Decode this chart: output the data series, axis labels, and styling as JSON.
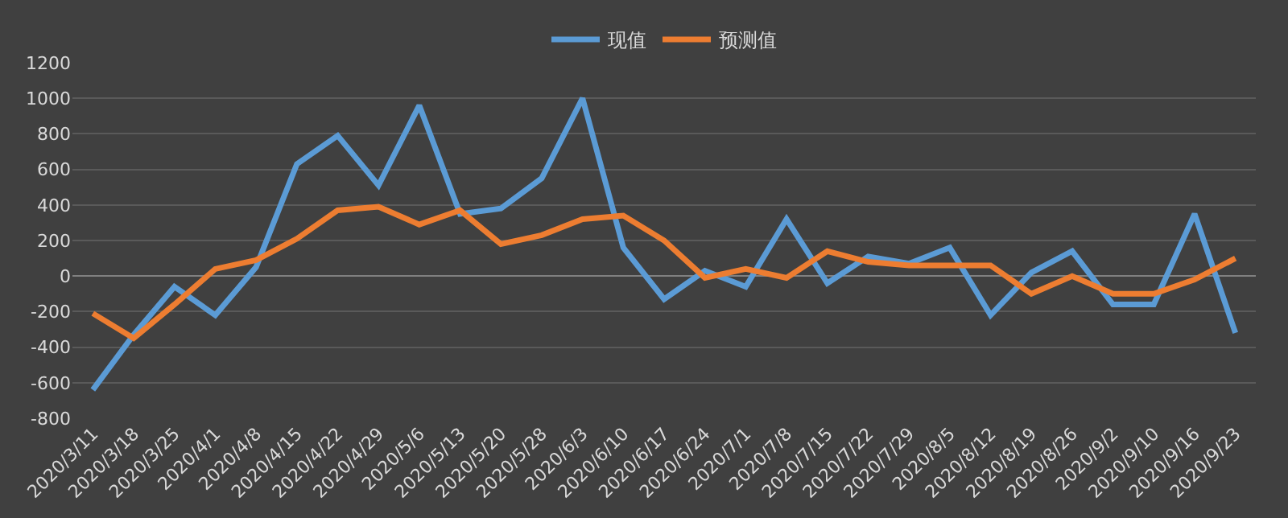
{
  "chart_data": {
    "type": "line",
    "categories": [
      "2020/3/11",
      "2020/3/18",
      "2020/3/25",
      "2020/4/1",
      "2020/4/8",
      "2020/4/15",
      "2020/4/22",
      "2020/4/29",
      "2020/5/6",
      "2020/5/13",
      "2020/5/20",
      "2020/5/28",
      "2020/6/3",
      "2020/6/10",
      "2020/6/17",
      "2020/6/24",
      "2020/7/1",
      "2020/7/8",
      "2020/7/15",
      "2020/7/22",
      "2020/7/29",
      "2020/8/5",
      "2020/8/12",
      "2020/8/19",
      "2020/8/26",
      "2020/9/2",
      "2020/9/10",
      "2020/9/16",
      "2020/9/23"
    ],
    "series": [
      {
        "name": "现值",
        "color": "#5b9bd5",
        "values": [
          -640,
          -330,
          -60,
          -220,
          50,
          630,
          790,
          510,
          960,
          350,
          380,
          550,
          1000,
          160,
          -130,
          30,
          -60,
          320,
          -40,
          110,
          70,
          160,
          -220,
          20,
          140,
          -160,
          -160,
          350,
          -320
        ]
      },
      {
        "name": "预测值",
        "color": "#ed7d31",
        "values": [
          -210,
          -350,
          -160,
          40,
          90,
          210,
          370,
          390,
          290,
          370,
          180,
          230,
          320,
          340,
          200,
          -10,
          40,
          -10,
          140,
          80,
          60,
          60,
          60,
          -100,
          0,
          -100,
          -100,
          -20,
          100
        ]
      }
    ],
    "ylim": [
      -800,
      1200
    ],
    "yticks": [
      -800,
      -600,
      -400,
      -200,
      0,
      200,
      400,
      600,
      800,
      1000,
      1200
    ],
    "grid": "y",
    "legend": "top",
    "marker": "none",
    "line_style": "solid"
  }
}
